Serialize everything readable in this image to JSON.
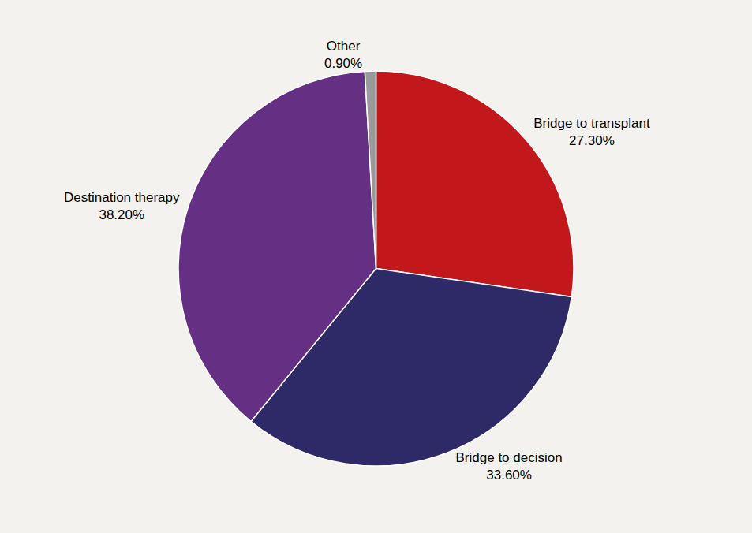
{
  "chart_data": {
    "type": "pie",
    "categories": [
      "Bridge to transplant",
      "Bridge to decision",
      "Destination therapy",
      "Other"
    ],
    "values": [
      27.3,
      33.6,
      38.2,
      0.9
    ],
    "value_labels": [
      "27.30%",
      "33.60%",
      "38.20%",
      "0.90%"
    ],
    "colors": [
      "#c2171b",
      "#2e2967",
      "#653083",
      "#9a9a9a"
    ],
    "data_labels": true
  }
}
